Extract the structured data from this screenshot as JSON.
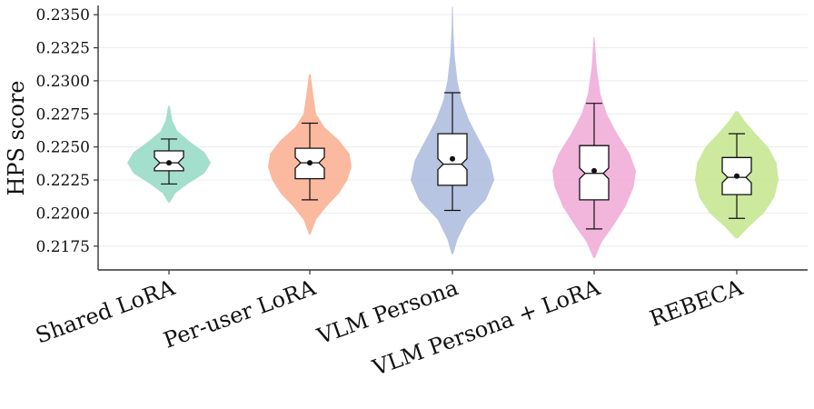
{
  "chart_data": {
    "type": "violin",
    "ylabel": "HPS score",
    "xlabel": "",
    "ylim": [
      0.2157,
      0.2357
    ],
    "yticks": [
      "0.2175",
      "0.2200",
      "0.2225",
      "0.2250",
      "0.2275",
      "0.2300",
      "0.2325",
      "0.2350"
    ],
    "grid": true,
    "categories": [
      "Shared LoRA",
      "Per-user LoRA",
      "VLM Persona",
      "VLM Persona + LoRA",
      "REBECA"
    ],
    "series": [
      {
        "color": "#9fdcc9",
        "min": 0.2208,
        "max": 0.2281,
        "whisker_low": 0.2222,
        "whisker_high": 0.2256,
        "q1": 0.2232,
        "median": 0.2238,
        "q3": 0.2247,
        "mean": 0.2238,
        "density": [
          [
            0.2208,
            0.02
          ],
          [
            0.2215,
            0.15
          ],
          [
            0.2222,
            0.45
          ],
          [
            0.223,
            0.85
          ],
          [
            0.2238,
            1.0
          ],
          [
            0.2246,
            0.85
          ],
          [
            0.2254,
            0.5
          ],
          [
            0.2262,
            0.2
          ],
          [
            0.227,
            0.08
          ],
          [
            0.2281,
            0.02
          ]
        ]
      },
      {
        "color": "#fbb59a",
        "min": 0.2184,
        "max": 0.2305,
        "whisker_low": 0.221,
        "whisker_high": 0.2268,
        "q1": 0.2226,
        "median": 0.2238,
        "q3": 0.2249,
        "mean": 0.2238,
        "density": [
          [
            0.2184,
            0.02
          ],
          [
            0.2195,
            0.15
          ],
          [
            0.2205,
            0.4
          ],
          [
            0.2215,
            0.7
          ],
          [
            0.2225,
            0.9
          ],
          [
            0.2235,
            1.0
          ],
          [
            0.2245,
            0.95
          ],
          [
            0.2255,
            0.7
          ],
          [
            0.2265,
            0.35
          ],
          [
            0.2275,
            0.15
          ],
          [
            0.229,
            0.08
          ],
          [
            0.2305,
            0.02
          ]
        ]
      },
      {
        "color": "#b3c1e0",
        "min": 0.2169,
        "max": 0.2356,
        "whisker_low": 0.2202,
        "whisker_high": 0.2291,
        "q1": 0.2221,
        "median": 0.2237,
        "q3": 0.226,
        "mean": 0.2241,
        "density": [
          [
            0.2169,
            0.02
          ],
          [
            0.218,
            0.12
          ],
          [
            0.2195,
            0.35
          ],
          [
            0.221,
            0.8
          ],
          [
            0.2225,
            1.0
          ],
          [
            0.224,
            0.9
          ],
          [
            0.2255,
            0.65
          ],
          [
            0.227,
            0.4
          ],
          [
            0.2285,
            0.22
          ],
          [
            0.23,
            0.12
          ],
          [
            0.232,
            0.05
          ],
          [
            0.234,
            0.02
          ],
          [
            0.2356,
            0.01
          ]
        ]
      },
      {
        "color": "#f1b1da",
        "min": 0.2166,
        "max": 0.2333,
        "whisker_low": 0.2188,
        "whisker_high": 0.2283,
        "q1": 0.221,
        "median": 0.223,
        "q3": 0.2251,
        "mean": 0.2232,
        "density": [
          [
            0.2166,
            0.02
          ],
          [
            0.2178,
            0.18
          ],
          [
            0.219,
            0.45
          ],
          [
            0.2205,
            0.75
          ],
          [
            0.222,
            0.95
          ],
          [
            0.2232,
            1.0
          ],
          [
            0.2245,
            0.85
          ],
          [
            0.226,
            0.55
          ],
          [
            0.2275,
            0.3
          ],
          [
            0.229,
            0.15
          ],
          [
            0.231,
            0.06
          ],
          [
            0.2333,
            0.01
          ]
        ]
      },
      {
        "color": "#c9e898",
        "min": 0.2181,
        "max": 0.2277,
        "whisker_low": 0.2196,
        "whisker_high": 0.226,
        "q1": 0.2214,
        "median": 0.2227,
        "q3": 0.2242,
        "mean": 0.2228,
        "density": [
          [
            0.2181,
            0.03
          ],
          [
            0.219,
            0.3
          ],
          [
            0.22,
            0.65
          ],
          [
            0.2212,
            0.9
          ],
          [
            0.2225,
            1.0
          ],
          [
            0.2238,
            0.95
          ],
          [
            0.225,
            0.75
          ],
          [
            0.226,
            0.45
          ],
          [
            0.227,
            0.18
          ],
          [
            0.2277,
            0.03
          ]
        ]
      }
    ]
  }
}
